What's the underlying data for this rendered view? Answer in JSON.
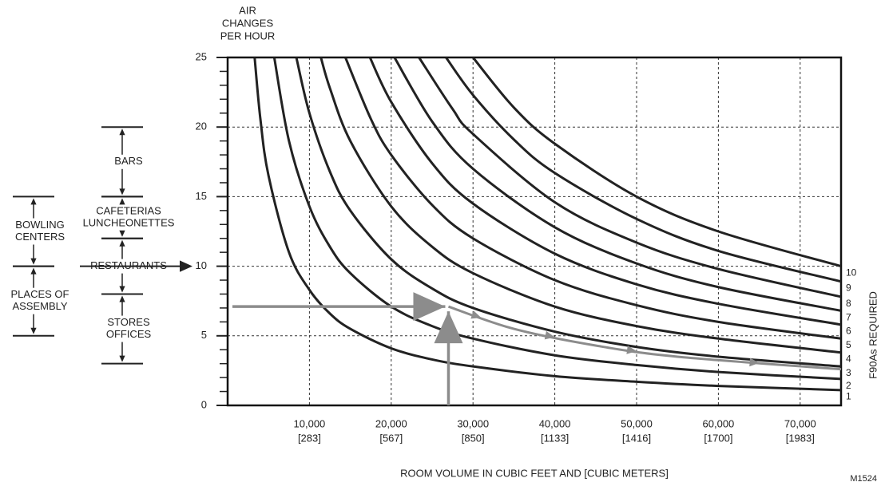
{
  "chart_data": {
    "type": "line",
    "y_label": [
      "AIR",
      "CHANGES",
      "PER HOUR"
    ],
    "x_label": "ROOM VOLUME IN CUBIC FEET AND [CUBIC METERS]",
    "right_label": "F90As REQUIRED",
    "figure_id": "M1524",
    "xlim": [
      0,
      75000
    ],
    "ylim": [
      0,
      25
    ],
    "yticks": [
      0,
      5,
      10,
      15,
      20,
      25
    ],
    "y_minor_ticks": [
      1,
      2,
      3,
      4,
      6,
      7,
      8,
      9,
      11,
      12,
      13,
      14,
      16,
      17,
      18,
      19,
      21,
      22,
      23,
      24
    ],
    "xticks": [
      {
        "value": 10000,
        "label": [
          "10,000",
          "[283]"
        ]
      },
      {
        "value": 20000,
        "label": [
          "20,000",
          "[567]"
        ]
      },
      {
        "value": 30000,
        "label": [
          "30,000",
          "[850]"
        ]
      },
      {
        "value": 40000,
        "label": [
          "40,000",
          "[1133]"
        ]
      },
      {
        "value": 50000,
        "label": [
          "50,000",
          "[1416]"
        ]
      },
      {
        "value": 60000,
        "label": [
          "60,000",
          "[1700]"
        ]
      },
      {
        "value": 70000,
        "label": [
          "70,000",
          "[1983]"
        ]
      }
    ],
    "grid": true,
    "series": [
      {
        "name": "1",
        "color": "#222222",
        "x": [
          3300,
          4000,
          5000,
          7500,
          10000,
          12500,
          15000,
          20000,
          25000,
          30000,
          40000,
          50000,
          60000,
          75000
        ],
        "values": [
          25,
          20.6,
          16.5,
          11.0,
          8.3,
          6.6,
          5.5,
          4.1,
          3.3,
          2.8,
          2.1,
          1.7,
          1.4,
          1.1
        ]
      },
      {
        "name": "2",
        "color": "#222222",
        "x": [
          5700,
          7500,
          10000,
          12500,
          15000,
          20000,
          25000,
          30000,
          40000,
          50000,
          60000,
          75000
        ],
        "values": [
          25,
          19.0,
          14.3,
          11.4,
          9.5,
          7.1,
          5.7,
          4.8,
          3.6,
          2.9,
          2.4,
          1.9
        ]
      },
      {
        "name": "3",
        "color": "#222222",
        "x": [
          8400,
          10000,
          12500,
          15000,
          20000,
          25000,
          30000,
          40000,
          50000,
          60000,
          75000
        ],
        "values": [
          25,
          21.0,
          16.8,
          14.0,
          10.5,
          8.4,
          7.0,
          5.3,
          4.2,
          3.5,
          2.8
        ]
      },
      {
        "name": "4",
        "color": "#222222",
        "x": [
          11400,
          12500,
          15000,
          20000,
          25000,
          30000,
          40000,
          50000,
          60000,
          75000
        ],
        "values": [
          25,
          22.8,
          19.0,
          14.3,
          11.4,
          9.5,
          7.1,
          5.7,
          4.8,
          3.8
        ]
      },
      {
        "name": "5",
        "color": "#222222",
        "x": [
          14400,
          17500,
          20000,
          25000,
          30000,
          40000,
          50000,
          60000,
          75000
        ],
        "values": [
          25,
          20.6,
          18.0,
          14.4,
          12.0,
          9.0,
          7.2,
          6.0,
          4.8
        ]
      },
      {
        "name": "6",
        "color": "#222222",
        "x": [
          17400,
          20000,
          25000,
          30000,
          40000,
          50000,
          60000,
          75000
        ],
        "values": [
          25,
          21.8,
          17.4,
          14.5,
          10.9,
          8.7,
          7.3,
          5.8
        ]
      },
      {
        "name": "7",
        "color": "#222222",
        "x": [
          20400,
          25000,
          30000,
          40000,
          50000,
          60000,
          75000
        ],
        "values": [
          25,
          20.4,
          17.0,
          12.8,
          10.2,
          8.5,
          6.8
        ]
      },
      {
        "name": "8",
        "color": "#222222",
        "x": [
          23400,
          27500,
          30000,
          40000,
          50000,
          60000,
          75000
        ],
        "values": [
          25,
          21.3,
          19.5,
          14.6,
          11.7,
          9.8,
          7.8
        ]
      },
      {
        "name": "9",
        "color": "#222222",
        "x": [
          26700,
          30000,
          35000,
          40000,
          50000,
          60000,
          75000
        ],
        "values": [
          25,
          22.3,
          19.1,
          16.7,
          13.4,
          11.1,
          8.9
        ]
      },
      {
        "name": "10",
        "color": "#222222",
        "x": [
          30000,
          35000,
          40000,
          50000,
          60000,
          75000
        ],
        "values": [
          25,
          21.4,
          18.8,
          15.0,
          12.5,
          10.0
        ]
      }
    ],
    "example": {
      "color": "#8c8c8c",
      "x": [
        27000,
        35000,
        45000,
        55000,
        75000
      ],
      "values": [
        7.1,
        5.5,
        4.3,
        3.5,
        2.6
      ]
    },
    "left_ranges": [
      {
        "label": [
          "BOWLING",
          "CENTERS"
        ],
        "from": 10,
        "to": 15
      },
      {
        "label": [
          "PLACES OF",
          "ASSEMBLY"
        ],
        "from": 5,
        "to": 10
      }
    ],
    "right_ranges": [
      {
        "label": [
          "BARS"
        ],
        "from": 15,
        "to": 20
      },
      {
        "label": [
          "CAFETERIAS",
          "LUNCHEONETTES"
        ],
        "from": 12,
        "to": 15
      },
      {
        "label": [
          "RESTAURANTS"
        ],
        "from": 8,
        "to": 12,
        "arrow_to_axis": true
      },
      {
        "label": [
          "STORES",
          "OFFICES"
        ],
        "from": 3,
        "to": 8
      }
    ]
  }
}
